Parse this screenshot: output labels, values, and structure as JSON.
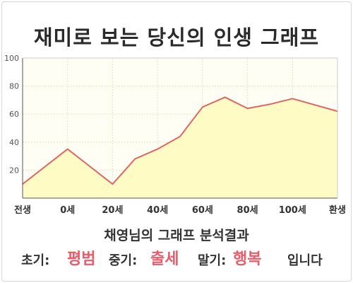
{
  "title": "재미로 보는 당신의 인생 그래프",
  "chart_data": {
    "type": "area",
    "x": [
      0,
      1,
      2,
      2.5,
      3,
      3.5,
      4,
      4.5,
      5,
      5.5,
      6,
      7
    ],
    "y": [
      10,
      35,
      10,
      28,
      35,
      44,
      65,
      72,
      64,
      67,
      71,
      62
    ],
    "x_tick_labels": [
      {
        "x": 0,
        "label": "전생"
      },
      {
        "x": 1,
        "label": "0세"
      },
      {
        "x": 2,
        "label": "20세"
      },
      {
        "x": 3,
        "label": "40세"
      },
      {
        "x": 4,
        "label": "60세"
      },
      {
        "x": 5,
        "label": "80세"
      },
      {
        "x": 6,
        "label": "100세"
      },
      {
        "x": 7,
        "label": "환생"
      }
    ],
    "y_ticks": [
      20,
      40,
      60,
      80,
      100
    ],
    "xlim": [
      0,
      7
    ],
    "ylim": [
      0,
      100
    ],
    "grid": true,
    "colors": {
      "line": "#e06666",
      "fill": "#fffbc4",
      "plot_bg": "#fffef4",
      "grid": "#e4e4c8"
    }
  },
  "summary": {
    "heading": "채영님의 그래프 분석결과",
    "early_label": "초기:",
    "early_value": "평범",
    "middle_label": "중기:",
    "middle_value": "출세",
    "late_label": "말기:",
    "late_value": "행복",
    "ending": "입니다",
    "highlight_color": "#e85c6a"
  }
}
